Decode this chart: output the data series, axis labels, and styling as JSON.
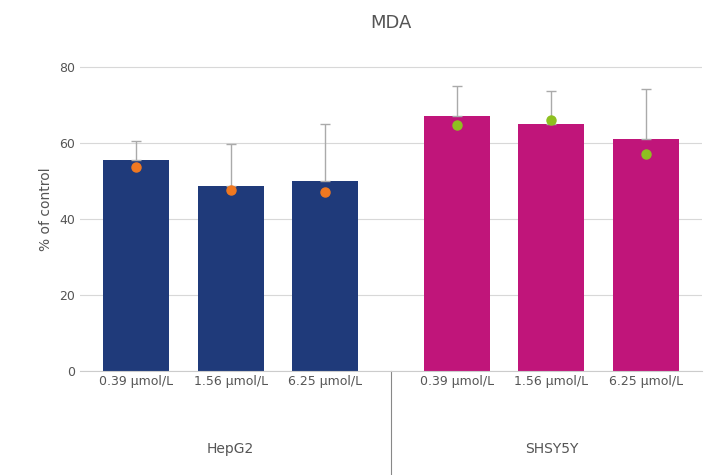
{
  "title": "MDA",
  "ylabel": "% of control",
  "ylim": [
    0,
    85
  ],
  "yticks": [
    0,
    20,
    40,
    60,
    80
  ],
  "groups": [
    "HepG2",
    "SHSY5Y"
  ],
  "categories": [
    "0.39 μmol/L",
    "1.56 μmol/L",
    "6.25 μmol/L"
  ],
  "bar_values": [
    55.5,
    48.5,
    50.0,
    67.0,
    65.0,
    61.0
  ],
  "error_values": [
    5.0,
    11.0,
    15.0,
    8.0,
    8.5,
    13.0
  ],
  "dot_values": [
    53.5,
    47.5,
    47.0,
    64.5,
    66.0,
    57.0
  ],
  "bar_colors": [
    "#1f3a7a",
    "#1f3a7a",
    "#1f3a7a",
    "#c0157a",
    "#c0157a",
    "#c0157a"
  ],
  "dot_colors": [
    "#f07820",
    "#f07820",
    "#f07820",
    "#8ec020",
    "#8ec020",
    "#8ec020"
  ],
  "group_labels": [
    "HepG2",
    "SHSY5Y"
  ],
  "bar_width": 0.7,
  "background_color": "#ffffff",
  "title_fontsize": 13,
  "title_color": "#555555",
  "axis_fontsize": 10,
  "tick_fontsize": 9,
  "group_label_fontsize": 10,
  "grid_color": "#d8d8d8",
  "error_color": "#aaaaaa",
  "spine_color": "#cccccc"
}
